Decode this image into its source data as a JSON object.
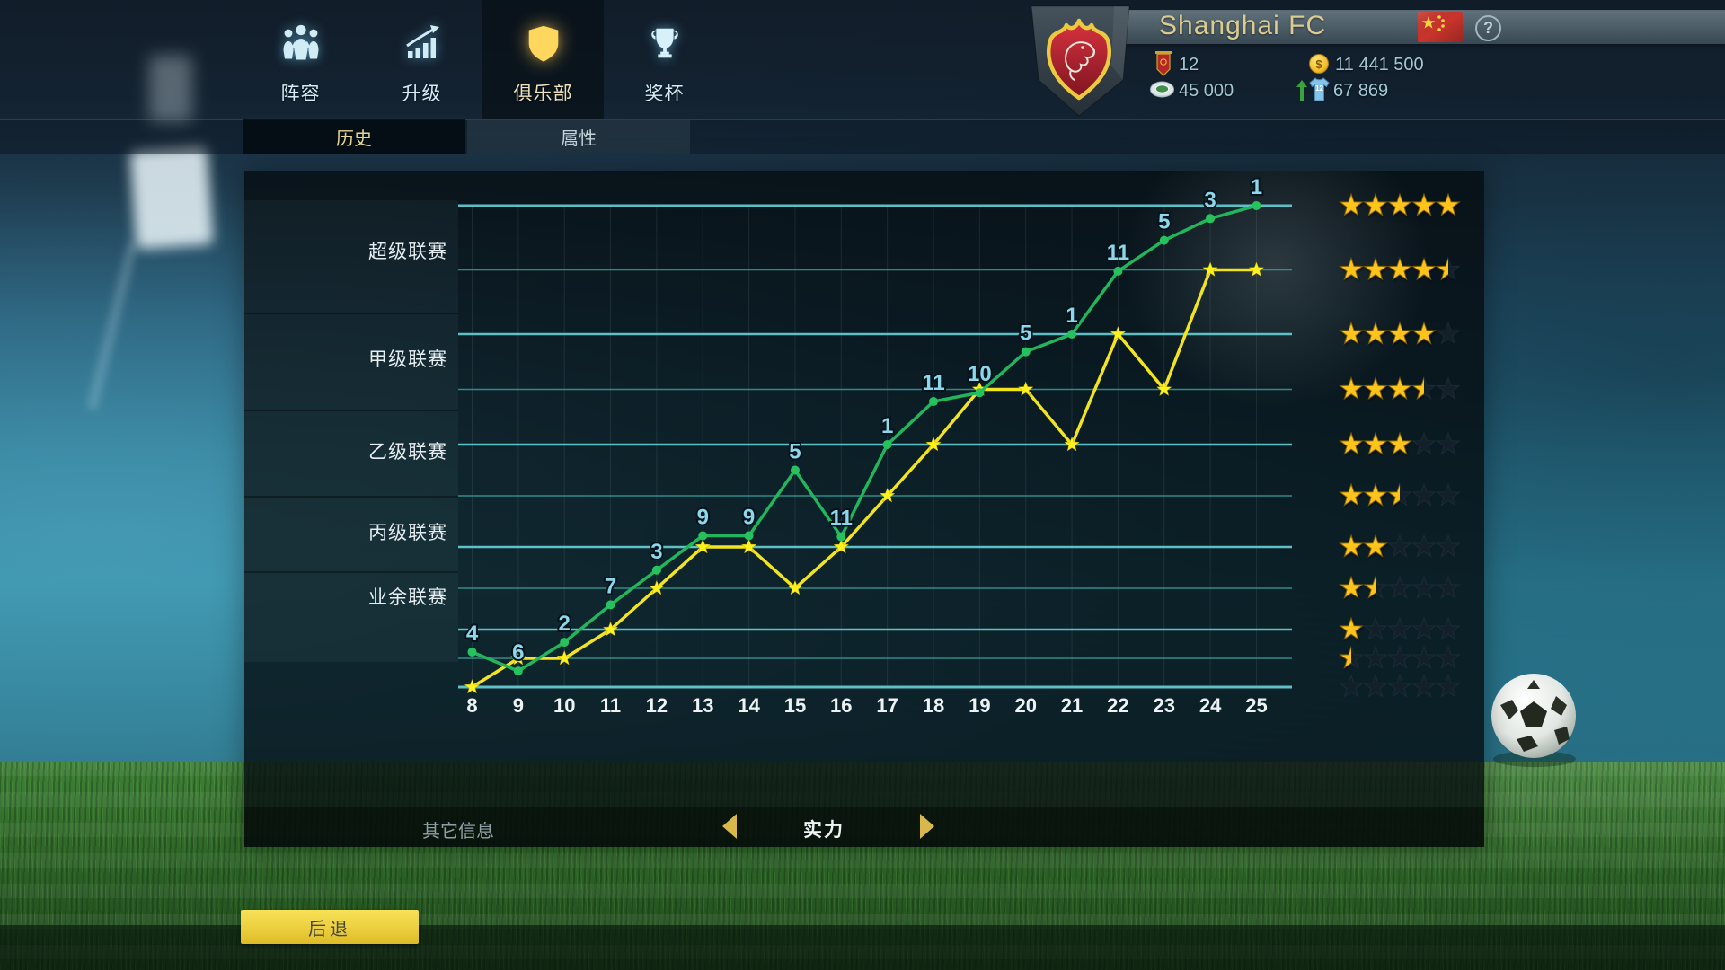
{
  "header": {
    "tabs": [
      {
        "id": "squad",
        "label": "阵容"
      },
      {
        "id": "upgrade",
        "label": "升级"
      },
      {
        "id": "club",
        "label": "俱乐部"
      },
      {
        "id": "trophy",
        "label": "奖杯"
      }
    ],
    "active_tab": "俱乐部",
    "club_name": "Shanghai FC",
    "resources": {
      "pennant": "12",
      "stadium": "45 000",
      "coins": "11 441 500",
      "jersey": "67 869",
      "jersey_badge": "12"
    },
    "help_label": "?"
  },
  "subtabs": {
    "history": "历史",
    "attributes": "属性"
  },
  "chart_data": {
    "type": "line",
    "title": "实力",
    "x": [
      8,
      9,
      10,
      11,
      12,
      13,
      14,
      15,
      16,
      17,
      18,
      19,
      20,
      21,
      22,
      23,
      24,
      25
    ],
    "tier_labels": [
      "超级联赛",
      "甲级联赛",
      "乙级联赛",
      "丙级联赛",
      "业余联赛"
    ],
    "y_axis": {
      "min": 0,
      "max": 5,
      "unit": "stars",
      "tier_band_levels": {
        "业余联赛": [
          0,
          1
        ],
        "丙级联赛": [
          1,
          2
        ],
        "乙级联赛": [
          2,
          3
        ],
        "甲级联赛": [
          3,
          4
        ],
        "超级联赛": [
          4,
          5
        ]
      }
    },
    "star_rows": [
      5,
      4.5,
      4,
      3.5,
      3,
      2.5,
      2,
      1.5,
      1,
      0.5,
      0
    ],
    "grid": true,
    "series": [
      {
        "name": "series-green",
        "color": "#22b55c",
        "marker": "circle",
        "levels": [
          0.61,
          0.28,
          0.78,
          1.3,
          1.72,
          2.11,
          2.11,
          2.75,
          2.1,
          3.0,
          3.39,
          3.47,
          3.84,
          4.0,
          4.49,
          4.73,
          4.9,
          5.0
        ],
        "point_labels": [
          "4",
          "6",
          "2",
          "7",
          "3",
          "9",
          "9",
          "5",
          "11",
          "1",
          "11",
          "10",
          "5",
          "1",
          "11",
          "5",
          "3",
          "1"
        ]
      },
      {
        "name": "series-yellow",
        "color": "#f2e41f",
        "marker": "star",
        "levels": [
          0,
          0.5,
          0.5,
          1,
          1.5,
          2,
          2,
          1.5,
          2,
          2.5,
          3,
          3.5,
          3.5,
          3,
          4,
          3.5,
          4.5,
          4.5
        ],
        "point_labels": []
      }
    ]
  },
  "carousel": {
    "prev_label": "其它信息",
    "current_label": "实力"
  },
  "back_label": "后退",
  "colors": {
    "accent_yellow": "#f2d23c",
    "line_green": "#22b55c",
    "line_yellow": "#f2e41f",
    "grid_cyan_thick": "#66d2d8",
    "grid_cyan_thin": "#379e9a",
    "star_gold": "#ffc41c",
    "value_label_cyan": "#8ed6ea"
  }
}
